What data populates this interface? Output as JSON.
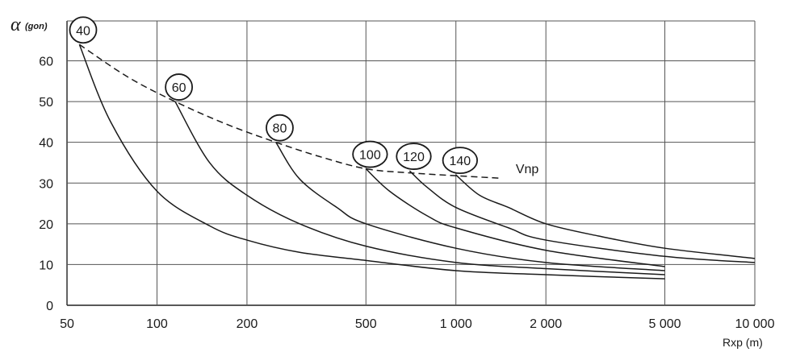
{
  "chart_data": {
    "type": "line",
    "x_scale": "log",
    "xlim": [
      50,
      10000
    ],
    "ylim": [
      0,
      65
    ],
    "grid": true,
    "ylabel": {
      "symbol": "α",
      "subscript": "(gon)"
    },
    "xlabel": "Rxp (m)",
    "x_ticks": [
      {
        "value": 50,
        "label": "50"
      },
      {
        "value": 100,
        "label": "100"
      },
      {
        "value": 200,
        "label": "200"
      },
      {
        "value": 500,
        "label": "500"
      },
      {
        "value": 1000,
        "label": "1 000"
      },
      {
        "value": 2000,
        "label": "2 000"
      },
      {
        "value": 5000,
        "label": "5 000"
      },
      {
        "value": 10000,
        "label": "10  000"
      }
    ],
    "y_ticks": [
      {
        "value": 0,
        "label": "0"
      },
      {
        "value": 10,
        "label": "10"
      },
      {
        "value": 20,
        "label": "20"
      },
      {
        "value": 30,
        "label": "30"
      },
      {
        "value": 40,
        "label": "40"
      },
      {
        "value": 50,
        "label": "50"
      },
      {
        "value": 60,
        "label": "60"
      }
    ],
    "series": [
      {
        "name": "40",
        "x": [
          55,
          70,
          100,
          150,
          200,
          300,
          500,
          1000,
          2000,
          5000
        ],
        "y": [
          64,
          45,
          28,
          19.5,
          16,
          13,
          11,
          8.5,
          7.5,
          6.5
        ]
      },
      {
        "name": "60",
        "x": [
          115,
          150,
          200,
          300,
          500,
          1000,
          2000,
          5000
        ],
        "y": [
          50,
          35,
          27,
          20,
          14.5,
          10.5,
          9,
          7.5
        ]
      },
      {
        "name": "80",
        "x": [
          250,
          300,
          400,
          500,
          1000,
          2000,
          5000
        ],
        "y": [
          40,
          31,
          24,
          20,
          14,
          10.5,
          8.5
        ]
      },
      {
        "name": "100",
        "x": [
          500,
          600,
          800,
          1000,
          2000,
          5000
        ],
        "y": [
          33.5,
          28,
          22,
          19,
          13.5,
          9.5
        ]
      },
      {
        "name": "120",
        "x": [
          700,
          800,
          1000,
          1500,
          2000,
          5000,
          10000
        ],
        "y": [
          33,
          29,
          24,
          19,
          16,
          12,
          10.5
        ]
      },
      {
        "name": "140",
        "x": [
          1000,
          1200,
          1500,
          2000,
          3000,
          5000,
          10000
        ],
        "y": [
          32,
          27,
          24,
          20,
          17,
          14,
          11.5
        ]
      }
    ],
    "vnp_curve": {
      "label": "Vnp",
      "x": [
        55,
        80,
        115,
        170,
        250,
        350,
        500,
        700,
        1000,
        1400
      ],
      "y": [
        64,
        56,
        50,
        44.5,
        40,
        36.5,
        33.5,
        32.5,
        31.8,
        31.2
      ]
    },
    "speed_markers": [
      {
        "label": "40",
        "x": 55,
        "y": 64
      },
      {
        "label": "60",
        "x": 115,
        "y": 50
      },
      {
        "label": "80",
        "x": 250,
        "y": 40
      },
      {
        "label": "100",
        "x": 500,
        "y": 33.5
      },
      {
        "label": "120",
        "x": 700,
        "y": 33
      },
      {
        "label": "140",
        "x": 1000,
        "y": 32
      }
    ]
  }
}
